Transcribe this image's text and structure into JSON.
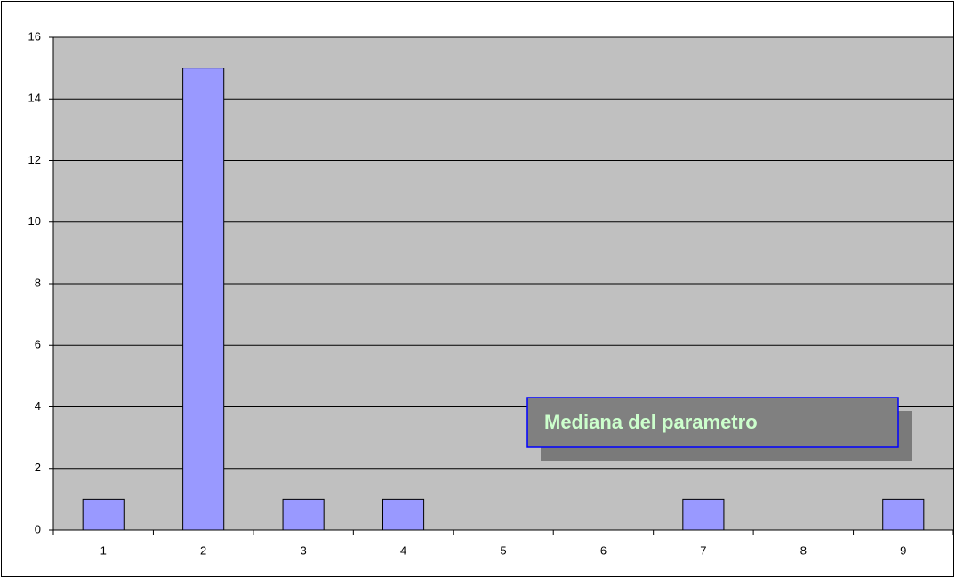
{
  "chart_data": {
    "type": "bar",
    "categories": [
      "1",
      "2",
      "3",
      "4",
      "5",
      "6",
      "7",
      "8",
      "9"
    ],
    "values": [
      1,
      15,
      1,
      1,
      0,
      0,
      1,
      0,
      1
    ],
    "color": "#9999ff",
    "ylim": [
      0,
      16
    ],
    "yticks": [
      0,
      2,
      4,
      6,
      8,
      10,
      12,
      14,
      16
    ],
    "grid": true,
    "annotations": [
      {
        "text": "Mediana del parametro"
      }
    ]
  }
}
